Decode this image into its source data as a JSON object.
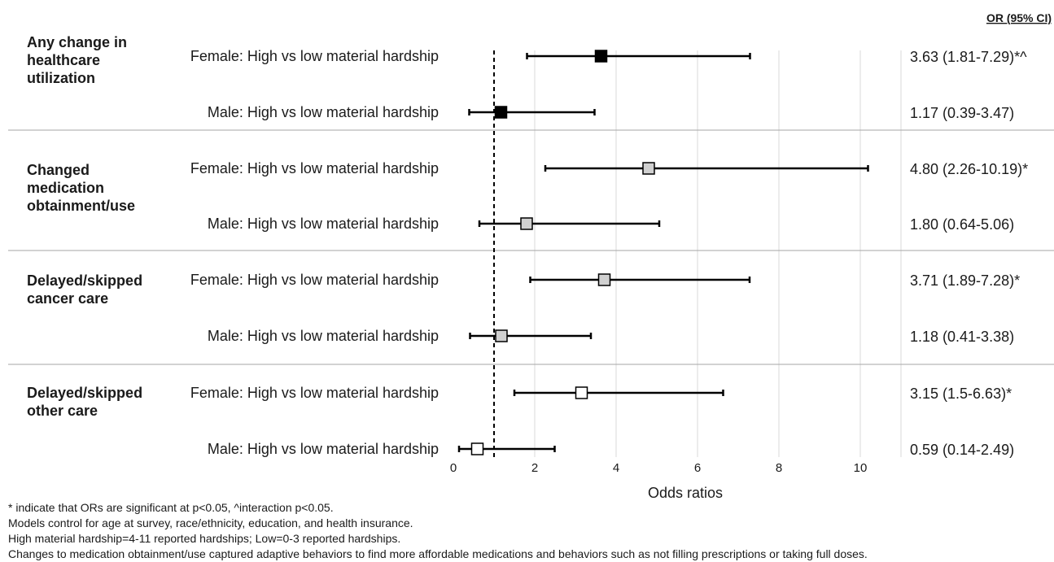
{
  "chart_data": {
    "type": "forest",
    "header": "OR (95% CI)",
    "xlabel": "Odds ratios",
    "xlim": [
      0,
      11
    ],
    "xticks": [
      0,
      2,
      4,
      6,
      8,
      10
    ],
    "reference_line": 1,
    "grid": "vertical",
    "groups": [
      {
        "label_lines": [
          "Any change in",
          "healthcare",
          "utilization"
        ],
        "marker_fill": "#000000",
        "rows": [
          {
            "label": "Female: High vs low material hardship",
            "or": 3.63,
            "lower": 1.81,
            "upper": 7.29,
            "text": "3.63 (1.81-7.29)*^"
          },
          {
            "label": "Male: High vs low material hardship",
            "or": 1.17,
            "lower": 0.39,
            "upper": 3.47,
            "text": "1.17 (0.39-3.47)"
          }
        ]
      },
      {
        "label_lines": [
          "Changed",
          "medication",
          "obtainment/use"
        ],
        "marker_fill": "#d0d0d0",
        "rows": [
          {
            "label": "Female: High vs low material hardship",
            "or": 4.8,
            "lower": 2.26,
            "upper": 10.19,
            "text": "4.80 (2.26-10.19)*"
          },
          {
            "label": "Male: High vs low material hardship",
            "or": 1.8,
            "lower": 0.64,
            "upper": 5.06,
            "text": "1.80 (0.64-5.06)"
          }
        ]
      },
      {
        "label_lines": [
          "Delayed/skipped",
          "cancer care"
        ],
        "marker_fill": "#d0d0d0",
        "rows": [
          {
            "label": "Female: High vs low material hardship",
            "or": 3.71,
            "lower": 1.89,
            "upper": 7.28,
            "text": "3.71 (1.89-7.28)*"
          },
          {
            "label": "Male: High vs low material hardship",
            "or": 1.18,
            "lower": 0.41,
            "upper": 3.38,
            "text": "1.18 (0.41-3.38)"
          }
        ]
      },
      {
        "label_lines": [
          "Delayed/skipped",
          "other care"
        ],
        "marker_fill": "#ffffff",
        "rows": [
          {
            "label": "Female: High vs low material hardship",
            "or": 3.15,
            "lower": 1.5,
            "upper": 6.63,
            "text": "3.15 (1.5-6.63)*"
          },
          {
            "label": "Male: High vs low material hardship",
            "or": 0.59,
            "lower": 0.14,
            "upper": 2.49,
            "text": "0.59 (0.14-2.49)"
          }
        ]
      }
    ]
  },
  "footnotes": [
    "* indicate that ORs are significant at p<0.05, ^interaction p<0.05.",
    "Models control for age at survey, race/ethnicity, education, and health insurance.",
    "High material hardship=4-11 reported hardships; Low=0-3 reported hardships.",
    "Changes to medication obtainment/use captured adaptive behaviors to find more affordable medications and behaviors such as not filling prescriptions or taking full doses."
  ]
}
